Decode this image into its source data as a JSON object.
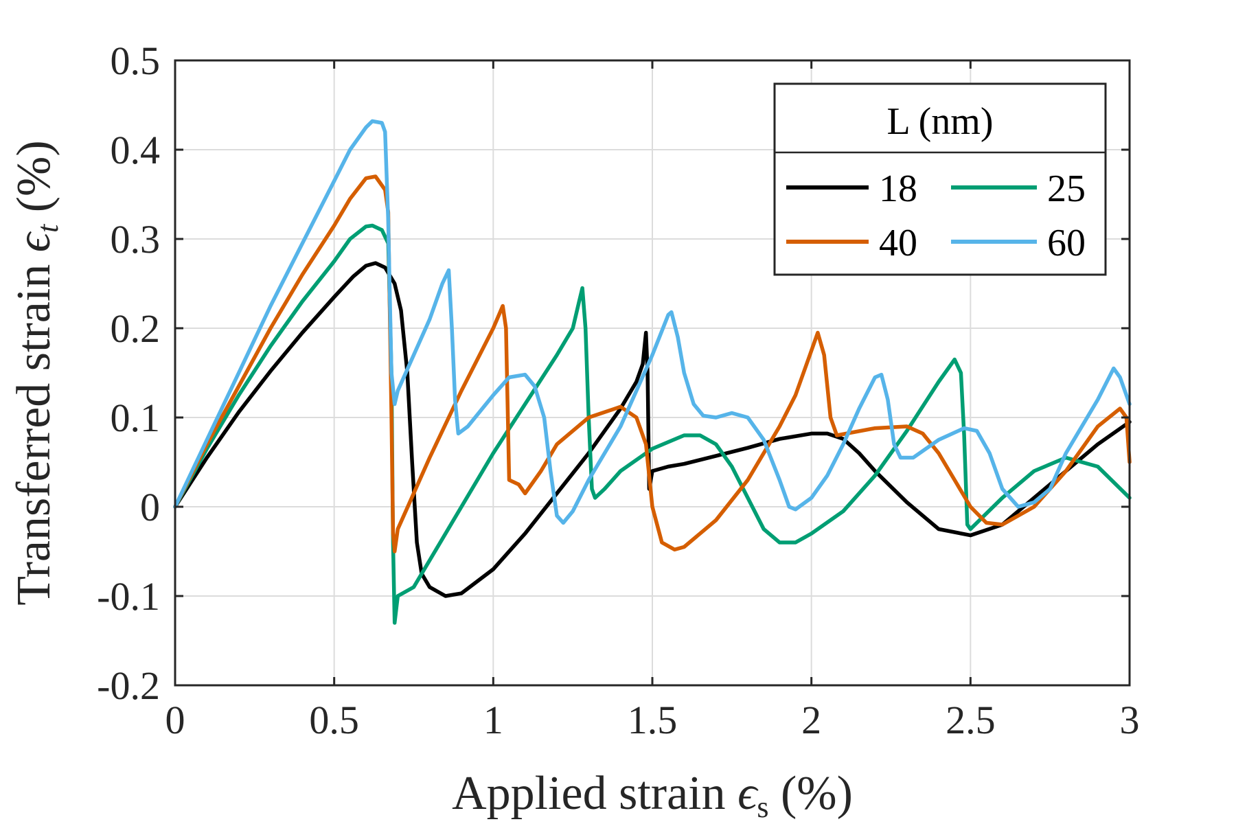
{
  "chart_data": {
    "type": "line",
    "xlabel": "Applied strain",
    "xlabel_symbol": "ϵ",
    "xlabel_subscript": "s",
    "xlabel_unit": "(%)",
    "ylabel": "Transferred strain",
    "ylabel_symbol": "ϵ",
    "ylabel_subscript": "t",
    "ylabel_unit": "(%)",
    "xlim": [
      0,
      3
    ],
    "ylim": [
      -0.2,
      0.5
    ],
    "x_ticks": [
      0,
      0.5,
      1,
      1.5,
      2,
      2.5,
      3
    ],
    "x_tick_labels": [
      "0",
      "0.5",
      "1",
      "1.5",
      "2",
      "2.5",
      "3"
    ],
    "y_ticks": [
      -0.2,
      -0.1,
      0,
      0.1,
      0.2,
      0.3,
      0.4,
      0.5
    ],
    "y_tick_labels": [
      "-0.2",
      "-0.1",
      "0",
      "0.1",
      "0.2",
      "0.3",
      "0.4",
      "0.5"
    ],
    "grid": true,
    "legend": {
      "title": "L (nm)",
      "placement": "top-right",
      "columns": 2
    },
    "series": [
      {
        "name": "18",
        "color": "#000000",
        "points": [
          [
            0,
            0
          ],
          [
            0.1,
            0.055
          ],
          [
            0.2,
            0.106
          ],
          [
            0.3,
            0.152
          ],
          [
            0.4,
            0.195
          ],
          [
            0.5,
            0.235
          ],
          [
            0.56,
            0.258
          ],
          [
            0.6,
            0.27
          ],
          [
            0.63,
            0.273
          ],
          [
            0.66,
            0.268
          ],
          [
            0.69,
            0.25
          ],
          [
            0.71,
            0.22
          ],
          [
            0.73,
            0.15
          ],
          [
            0.745,
            0.05
          ],
          [
            0.76,
            -0.04
          ],
          [
            0.775,
            -0.075
          ],
          [
            0.8,
            -0.09
          ],
          [
            0.85,
            -0.1
          ],
          [
            0.9,
            -0.097
          ],
          [
            1.0,
            -0.07
          ],
          [
            1.1,
            -0.03
          ],
          [
            1.2,
            0.015
          ],
          [
            1.3,
            0.06
          ],
          [
            1.4,
            0.11
          ],
          [
            1.45,
            0.14
          ],
          [
            1.47,
            0.16
          ],
          [
            1.48,
            0.195
          ],
          [
            1.485,
            0.15
          ],
          [
            1.49,
            0.02
          ],
          [
            1.5,
            0.04
          ],
          [
            1.55,
            0.045
          ],
          [
            1.6,
            0.048
          ],
          [
            1.7,
            0.057
          ],
          [
            1.8,
            0.066
          ],
          [
            1.9,
            0.076
          ],
          [
            2.0,
            0.082
          ],
          [
            2.05,
            0.082
          ],
          [
            2.1,
            0.076
          ],
          [
            2.15,
            0.06
          ],
          [
            2.2,
            0.04
          ],
          [
            2.3,
            0.005
          ],
          [
            2.4,
            -0.025
          ],
          [
            2.5,
            -0.032
          ],
          [
            2.6,
            -0.02
          ],
          [
            2.7,
            0.01
          ],
          [
            2.8,
            0.04
          ],
          [
            2.9,
            0.07
          ],
          [
            3.0,
            0.095
          ]
        ]
      },
      {
        "name": "25",
        "color": "#009e73",
        "points": [
          [
            0,
            0
          ],
          [
            0.1,
            0.065
          ],
          [
            0.2,
            0.125
          ],
          [
            0.3,
            0.18
          ],
          [
            0.4,
            0.23
          ],
          [
            0.5,
            0.275
          ],
          [
            0.55,
            0.3
          ],
          [
            0.6,
            0.314
          ],
          [
            0.62,
            0.315
          ],
          [
            0.65,
            0.31
          ],
          [
            0.67,
            0.295
          ],
          [
            0.68,
            0.15
          ],
          [
            0.685,
            -0.04
          ],
          [
            0.69,
            -0.13
          ],
          [
            0.7,
            -0.1
          ],
          [
            0.75,
            -0.09
          ],
          [
            0.8,
            -0.06
          ],
          [
            0.9,
            0.0
          ],
          [
            1.0,
            0.06
          ],
          [
            1.1,
            0.115
          ],
          [
            1.2,
            0.17
          ],
          [
            1.25,
            0.2
          ],
          [
            1.27,
            0.23
          ],
          [
            1.28,
            0.245
          ],
          [
            1.29,
            0.2
          ],
          [
            1.3,
            0.1
          ],
          [
            1.31,
            0.02
          ],
          [
            1.32,
            0.01
          ],
          [
            1.35,
            0.02
          ],
          [
            1.4,
            0.04
          ],
          [
            1.5,
            0.065
          ],
          [
            1.6,
            0.08
          ],
          [
            1.65,
            0.08
          ],
          [
            1.7,
            0.07
          ],
          [
            1.75,
            0.045
          ],
          [
            1.8,
            0.01
          ],
          [
            1.85,
            -0.025
          ],
          [
            1.9,
            -0.04
          ],
          [
            1.95,
            -0.04
          ],
          [
            2.0,
            -0.03
          ],
          [
            2.1,
            -0.005
          ],
          [
            2.2,
            0.035
          ],
          [
            2.3,
            0.085
          ],
          [
            2.4,
            0.14
          ],
          [
            2.45,
            0.165
          ],
          [
            2.47,
            0.15
          ],
          [
            2.48,
            0.08
          ],
          [
            2.49,
            -0.02
          ],
          [
            2.5,
            -0.025
          ],
          [
            2.6,
            0.01
          ],
          [
            2.7,
            0.04
          ],
          [
            2.8,
            0.055
          ],
          [
            2.9,
            0.045
          ],
          [
            3.0,
            0.01
          ]
        ]
      },
      {
        "name": "40",
        "color": "#d55e00",
        "points": [
          [
            0,
            0
          ],
          [
            0.1,
            0.07
          ],
          [
            0.2,
            0.135
          ],
          [
            0.3,
            0.2
          ],
          [
            0.4,
            0.26
          ],
          [
            0.5,
            0.315
          ],
          [
            0.55,
            0.345
          ],
          [
            0.6,
            0.368
          ],
          [
            0.63,
            0.37
          ],
          [
            0.66,
            0.355
          ],
          [
            0.67,
            0.33
          ],
          [
            0.68,
            0.1
          ],
          [
            0.685,
            -0.03
          ],
          [
            0.69,
            -0.05
          ],
          [
            0.7,
            -0.025
          ],
          [
            0.8,
            0.055
          ],
          [
            0.9,
            0.13
          ],
          [
            1.0,
            0.2
          ],
          [
            1.03,
            0.225
          ],
          [
            1.04,
            0.2
          ],
          [
            1.05,
            0.03
          ],
          [
            1.08,
            0.025
          ],
          [
            1.1,
            0.015
          ],
          [
            1.15,
            0.04
          ],
          [
            1.2,
            0.07
          ],
          [
            1.3,
            0.1
          ],
          [
            1.4,
            0.112
          ],
          [
            1.45,
            0.1
          ],
          [
            1.48,
            0.07
          ],
          [
            1.5,
            0.0
          ],
          [
            1.53,
            -0.04
          ],
          [
            1.57,
            -0.048
          ],
          [
            1.6,
            -0.045
          ],
          [
            1.7,
            -0.015
          ],
          [
            1.8,
            0.03
          ],
          [
            1.9,
            0.09
          ],
          [
            1.95,
            0.125
          ],
          [
            2.0,
            0.175
          ],
          [
            2.02,
            0.195
          ],
          [
            2.04,
            0.17
          ],
          [
            2.06,
            0.1
          ],
          [
            2.08,
            0.08
          ],
          [
            2.2,
            0.088
          ],
          [
            2.3,
            0.09
          ],
          [
            2.35,
            0.082
          ],
          [
            2.4,
            0.06
          ],
          [
            2.45,
            0.03
          ],
          [
            2.5,
            0.0
          ],
          [
            2.55,
            -0.018
          ],
          [
            2.6,
            -0.02
          ],
          [
            2.7,
            0.0
          ],
          [
            2.8,
            0.04
          ],
          [
            2.9,
            0.09
          ],
          [
            2.97,
            0.11
          ],
          [
            2.99,
            0.1
          ],
          [
            3.0,
            0.05
          ]
        ]
      },
      {
        "name": "60",
        "color": "#56b4e9",
        "points": [
          [
            0,
            0
          ],
          [
            0.1,
            0.075
          ],
          [
            0.2,
            0.15
          ],
          [
            0.3,
            0.225
          ],
          [
            0.4,
            0.295
          ],
          [
            0.5,
            0.365
          ],
          [
            0.55,
            0.4
          ],
          [
            0.6,
            0.425
          ],
          [
            0.62,
            0.432
          ],
          [
            0.65,
            0.43
          ],
          [
            0.66,
            0.42
          ],
          [
            0.67,
            0.32
          ],
          [
            0.68,
            0.15
          ],
          [
            0.69,
            0.115
          ],
          [
            0.7,
            0.13
          ],
          [
            0.75,
            0.17
          ],
          [
            0.8,
            0.21
          ],
          [
            0.84,
            0.25
          ],
          [
            0.86,
            0.265
          ],
          [
            0.87,
            0.2
          ],
          [
            0.88,
            0.12
          ],
          [
            0.89,
            0.082
          ],
          [
            0.92,
            0.09
          ],
          [
            1.0,
            0.125
          ],
          [
            1.05,
            0.145
          ],
          [
            1.1,
            0.148
          ],
          [
            1.13,
            0.135
          ],
          [
            1.16,
            0.1
          ],
          [
            1.18,
            0.04
          ],
          [
            1.2,
            -0.01
          ],
          [
            1.22,
            -0.018
          ],
          [
            1.25,
            -0.005
          ],
          [
            1.3,
            0.03
          ],
          [
            1.4,
            0.09
          ],
          [
            1.5,
            0.17
          ],
          [
            1.55,
            0.215
          ],
          [
            1.56,
            0.218
          ],
          [
            1.58,
            0.19
          ],
          [
            1.6,
            0.15
          ],
          [
            1.63,
            0.115
          ],
          [
            1.66,
            0.102
          ],
          [
            1.7,
            0.1
          ],
          [
            1.75,
            0.105
          ],
          [
            1.8,
            0.1
          ],
          [
            1.85,
            0.075
          ],
          [
            1.9,
            0.03
          ],
          [
            1.93,
            0.0
          ],
          [
            1.95,
            -0.003
          ],
          [
            2.0,
            0.01
          ],
          [
            2.05,
            0.035
          ],
          [
            2.1,
            0.07
          ],
          [
            2.15,
            0.11
          ],
          [
            2.2,
            0.145
          ],
          [
            2.22,
            0.148
          ],
          [
            2.24,
            0.12
          ],
          [
            2.26,
            0.07
          ],
          [
            2.28,
            0.055
          ],
          [
            2.32,
            0.055
          ],
          [
            2.4,
            0.075
          ],
          [
            2.48,
            0.088
          ],
          [
            2.52,
            0.085
          ],
          [
            2.56,
            0.06
          ],
          [
            2.6,
            0.02
          ],
          [
            2.65,
            0.0
          ],
          [
            2.7,
            0.005
          ],
          [
            2.75,
            0.02
          ],
          [
            2.8,
            0.06
          ],
          [
            2.9,
            0.12
          ],
          [
            2.95,
            0.155
          ],
          [
            2.97,
            0.145
          ],
          [
            3.0,
            0.115
          ]
        ]
      }
    ]
  }
}
